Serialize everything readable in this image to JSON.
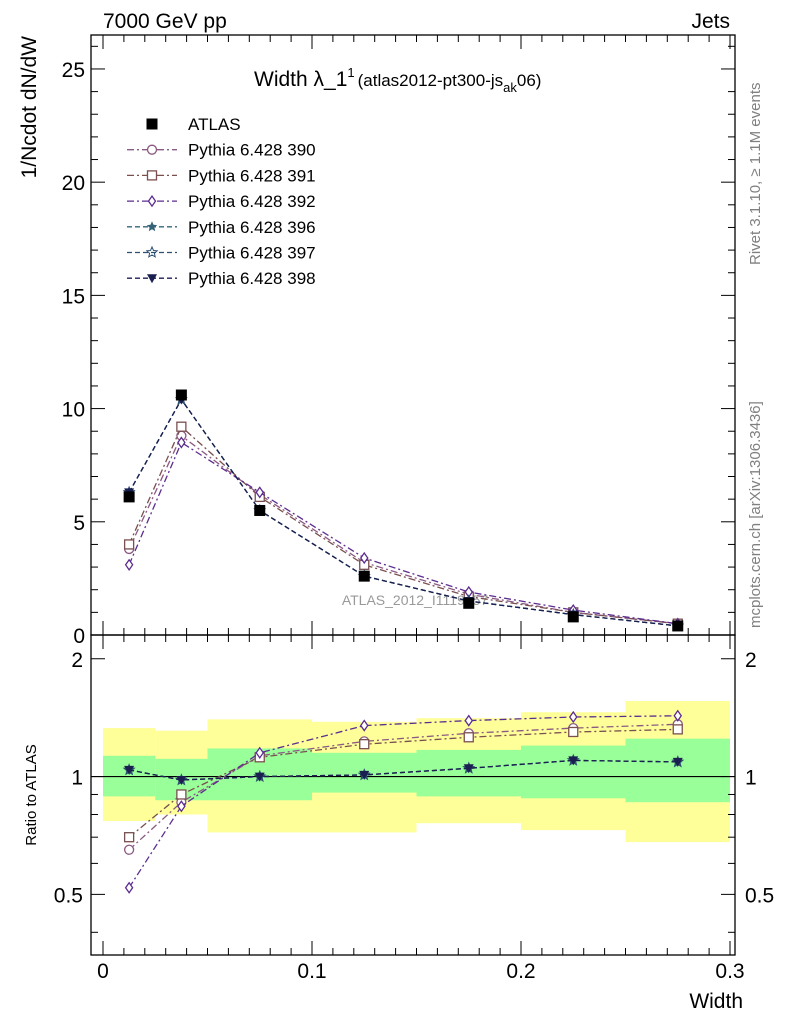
{
  "header": {
    "left": "7000 GeV pp",
    "right": "Jets"
  },
  "side_labels": {
    "rivet": "Rivet 3.1.10, ≥ 1.1M events",
    "mcplots": "mcplots.cern.ch [arXiv:1306.3436]"
  },
  "watermark": "ATLAS_2012_I1119557",
  "colors": {
    "data": "#000000",
    "p390": "#8b5a83",
    "p391": "#7a4f4f",
    "p392": "#5b2c8f",
    "p396": "#35647a",
    "p397": "#2e5072",
    "p398": "#1a1f4f",
    "band_inner": "#99ff99",
    "band_outer": "#ffff99"
  },
  "chart_data": [
    {
      "type": "line",
      "title": "Width λ_1",
      "title_sup": "1",
      "title_note": "(atlas2012-pt300-js",
      "title_note_sub": "ak",
      "title_note_end": "06)",
      "ylabel": "1/Ncdot dN/dW",
      "ylim": [
        0,
        26.5
      ],
      "yticks": [
        "0",
        "5",
        "10",
        "15",
        "20",
        "25"
      ],
      "x": [
        0.0125,
        0.0375,
        0.075,
        0.125,
        0.175,
        0.225,
        0.275
      ],
      "legend_position": "top-left",
      "series": [
        {
          "name": "ATLAS",
          "key": "data",
          "marker": "square-filled",
          "values": [
            6.1,
            10.6,
            5.5,
            2.6,
            1.4,
            0.8,
            0.4
          ]
        },
        {
          "name": "Pythia 6.428 390",
          "key": "p390",
          "marker": "circle-open",
          "values": [
            3.8,
            8.8,
            6.2,
            3.2,
            1.8,
            1.0,
            0.5
          ]
        },
        {
          "name": "Pythia 6.428 391",
          "key": "p391",
          "marker": "square-open",
          "values": [
            4.0,
            9.2,
            6.1,
            3.1,
            1.7,
            1.0,
            0.5
          ]
        },
        {
          "name": "Pythia 6.428 392",
          "key": "p392",
          "marker": "diamond-open",
          "values": [
            3.1,
            8.5,
            6.3,
            3.4,
            1.9,
            1.1,
            0.5
          ]
        },
        {
          "name": "Pythia 6.428 396",
          "key": "p396",
          "marker": "star-filled",
          "values": [
            6.3,
            10.4,
            5.5,
            2.6,
            1.5,
            0.9,
            0.4
          ]
        },
        {
          "name": "Pythia 6.428 397",
          "key": "p397",
          "marker": "star-open",
          "values": [
            6.3,
            10.4,
            5.5,
            2.6,
            1.5,
            0.9,
            0.4
          ]
        },
        {
          "name": "Pythia 6.428 398",
          "key": "p398",
          "marker": "triangle-down-filled",
          "values": [
            6.3,
            10.4,
            5.5,
            2.6,
            1.5,
            0.9,
            0.4
          ]
        }
      ]
    },
    {
      "type": "line",
      "ylabel": "Ratio to ATLAS",
      "xlabel": "Width",
      "xlim": [
        0,
        0.3
      ],
      "xticks": [
        "0",
        "0.1",
        "0.2",
        "0.3"
      ],
      "ylim": [
        0.35,
        2.3
      ],
      "yticks": [
        "0.5",
        "1",
        "2"
      ],
      "reference_line": 1,
      "bins": [
        [
          0,
          0.025
        ],
        [
          0.025,
          0.05
        ],
        [
          0.05,
          0.1
        ],
        [
          0.1,
          0.15
        ],
        [
          0.15,
          0.2
        ],
        [
          0.2,
          0.25
        ],
        [
          0.25,
          0.3
        ]
      ],
      "band_inner": [
        [
          0.89,
          1.13
        ],
        [
          0.87,
          1.11
        ],
        [
          0.87,
          1.18
        ],
        [
          0.91,
          1.15
        ],
        [
          0.89,
          1.17
        ],
        [
          0.88,
          1.2
        ],
        [
          0.86,
          1.25
        ]
      ],
      "band_outer": [
        [
          0.77,
          1.33
        ],
        [
          0.8,
          1.31
        ],
        [
          0.72,
          1.4
        ],
        [
          0.72,
          1.38
        ],
        [
          0.76,
          1.41
        ],
        [
          0.73,
          1.46
        ],
        [
          0.68,
          1.56
        ]
      ],
      "x": [
        0.0125,
        0.0375,
        0.075,
        0.125,
        0.175,
        0.225,
        0.275
      ],
      "series": [
        {
          "name": "Pythia 6.428 390",
          "key": "p390",
          "marker": "circle-open",
          "values": [
            0.65,
            0.86,
            1.13,
            1.23,
            1.29,
            1.33,
            1.36
          ]
        },
        {
          "name": "Pythia 6.428 391",
          "key": "p391",
          "marker": "square-open",
          "values": [
            0.7,
            0.9,
            1.12,
            1.21,
            1.26,
            1.3,
            1.32
          ]
        },
        {
          "name": "Pythia 6.428 392",
          "key": "p392",
          "marker": "diamond-open",
          "values": [
            0.52,
            0.84,
            1.15,
            1.35,
            1.39,
            1.42,
            1.43
          ]
        },
        {
          "name": "Pythia 6.428 396",
          "key": "p396",
          "marker": "star-filled",
          "values": [
            1.04,
            0.98,
            1.0,
            1.01,
            1.05,
            1.1,
            1.09
          ]
        },
        {
          "name": "Pythia 6.428 397",
          "key": "p397",
          "marker": "star-open",
          "values": [
            1.04,
            0.98,
            1.0,
            1.01,
            1.05,
            1.1,
            1.09
          ]
        },
        {
          "name": "Pythia 6.428 398",
          "key": "p398",
          "marker": "triangle-down-filled",
          "values": [
            1.04,
            0.98,
            1.0,
            1.01,
            1.05,
            1.1,
            1.09
          ]
        }
      ]
    }
  ]
}
